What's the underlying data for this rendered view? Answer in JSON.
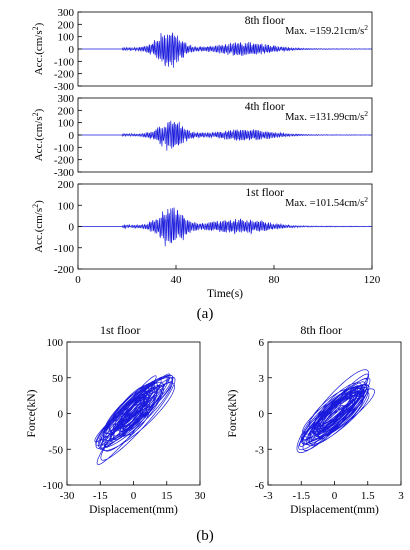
{
  "figure": {
    "label_a": "(a)",
    "label_b": "(b)"
  },
  "colors": {
    "trace": "#1a1adc",
    "axis": "#000000",
    "background": "#ffffff"
  },
  "chart_data": [
    {
      "type": "line",
      "title": "8th floor",
      "annotation": "Max. =159.21cm/s",
      "annotation_sup": "2",
      "ylabel": "Acc.(cm/s",
      "ylabel_sup": "2",
      "ylabel_close": ")",
      "xlim": [
        0,
        120
      ],
      "ylim": [
        -300,
        300
      ],
      "yticks": [
        300,
        200,
        100,
        0,
        -100,
        -200,
        -300
      ],
      "xticks": [],
      "peak": 159.21,
      "series": [
        {
          "x_start": 0,
          "x_end": 120,
          "onset": 18,
          "main_center": 37,
          "tail_center": 68,
          "peak": 159.21
        }
      ]
    },
    {
      "type": "line",
      "title": "4th floor",
      "annotation": "Max. =131.99cm/s",
      "annotation_sup": "2",
      "ylabel": "Acc.(cm/s",
      "ylabel_sup": "2",
      "ylabel_close": ")",
      "xlim": [
        0,
        120
      ],
      "ylim": [
        -300,
        300
      ],
      "yticks": [
        300,
        200,
        100,
        0,
        -100,
        -200,
        -300
      ],
      "xticks": [],
      "peak": 131.99,
      "series": [
        {
          "x_start": 0,
          "x_end": 120,
          "onset": 18,
          "main_center": 38,
          "tail_center": 68,
          "peak": 131.99
        }
      ]
    },
    {
      "type": "line",
      "title": "1st floor",
      "annotation": "Max. =101.54cm/s",
      "annotation_sup": "2",
      "ylabel": "Acc.(cm/s",
      "ylabel_sup": "2",
      "ylabel_close": ")",
      "xlabel": "Time(s)",
      "xlim": [
        0,
        120
      ],
      "ylim": [
        -200,
        200
      ],
      "yticks": [
        200,
        100,
        0,
        -100,
        -200
      ],
      "xticks": [
        0,
        40,
        80,
        120
      ],
      "peak": 101.54,
      "series": [
        {
          "x_start": 0,
          "x_end": 120,
          "onset": 18,
          "main_center": 38,
          "tail_center": 66,
          "peak": 101.54
        }
      ]
    },
    {
      "type": "line",
      "title": "1st floor",
      "xlabel": "Displacement(mm)",
      "ylabel": "Force(kN)",
      "xlim": [
        -30,
        30
      ],
      "ylim": [
        -100,
        100
      ],
      "xticks": [
        -30,
        -15,
        0,
        15,
        30
      ],
      "yticks": [
        100,
        50,
        0,
        -50,
        -100
      ],
      "loops": {
        "x_amplitude": 17,
        "y_amplitude": 70,
        "slope": 1.6,
        "count": 40
      }
    },
    {
      "type": "line",
      "title": "8th floor",
      "xlabel": "Displacement(mm)",
      "ylabel": "Force(kN)",
      "xlim": [
        -3,
        3
      ],
      "ylim": [
        -6,
        6
      ],
      "xticks": [
        -3,
        -1.5,
        0,
        1.5,
        3
      ],
      "yticks": [
        6,
        3,
        0,
        -3,
        -6
      ],
      "loops": {
        "x_amplitude": 1.7,
        "y_amplitude": 3.9,
        "slope": 1.7,
        "count": 40
      }
    }
  ]
}
